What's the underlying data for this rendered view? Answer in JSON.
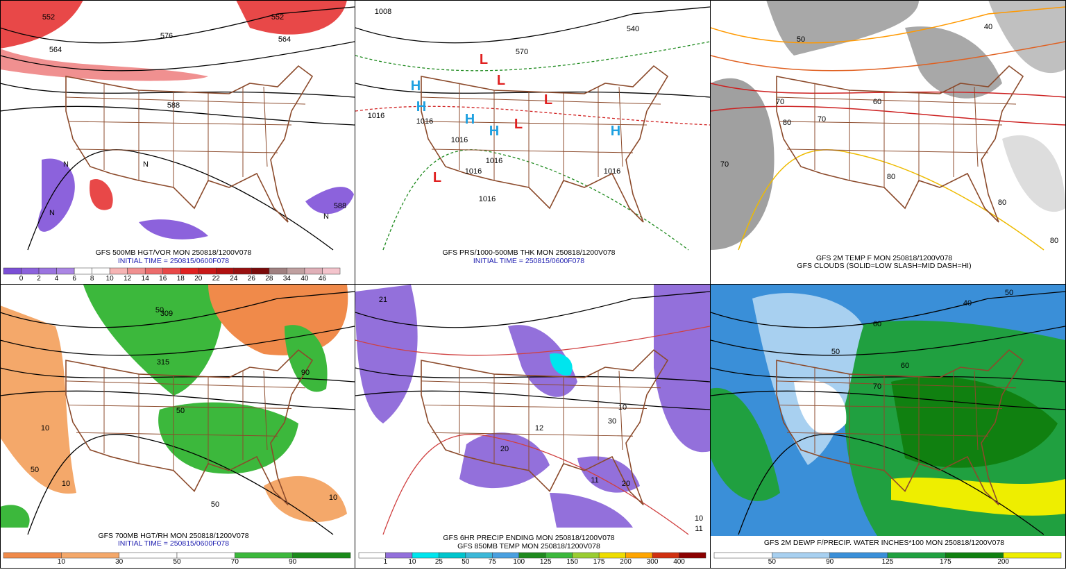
{
  "panels": [
    {
      "caption": [
        "GFS 500MB HGT/VOR MON 250818/1200V078",
        "INITIAL TIME = 250815/0600F078"
      ],
      "map_labels": [
        "552",
        "564",
        "576",
        "588",
        "552",
        "564",
        "588",
        "N",
        "N",
        "N",
        "N"
      ],
      "colorbar": {
        "labels": [
          "0",
          "2",
          "4",
          "6",
          "8",
          "10",
          "12",
          "14",
          "16",
          "18",
          "20",
          "22",
          "24",
          "26",
          "28",
          "34",
          "40",
          "46"
        ],
        "colors": [
          "#7b4fd6",
          "#8c62dc",
          "#9b74e0",
          "#ab86e4",
          "#ffffff",
          "#ffffff",
          "#f6b4b4",
          "#f09090",
          "#ec6c6c",
          "#e84848",
          "#e02020",
          "#c81818",
          "#b01010",
          "#981010",
          "#7a0a0a",
          "#a08080",
          "#c0a0a0",
          "#e0b0b8",
          "#f4c4cc"
        ]
      }
    },
    {
      "caption": [
        "GFS PRS/1000-500MB THK MON 250818/1200V078",
        "INITIAL TIME = 250815/0600F078"
      ],
      "map_labels": [
        "1008",
        "1016",
        "1016",
        "1016",
        "1016",
        "1016",
        "1016",
        "1016",
        "540",
        "570",
        "H",
        "H",
        "H",
        "H",
        "H",
        "L",
        "L",
        "L",
        "L",
        "L"
      ]
    },
    {
      "caption": [
        "GFS 2M TEMP F MON 250818/1200V078",
        "GFS CLOUDS (SOLID=LOW SLASH=MID DASH=HI)"
      ],
      "map_labels": [
        "70",
        "80",
        "70",
        "80",
        "60",
        "50",
        "40",
        "80",
        "80",
        "70"
      ]
    },
    {
      "caption": [
        "GFS 700MB HGT/RH MON 250818/1200V078",
        "INITIAL TIME = 250815/0600F078"
      ],
      "map_labels": [
        "315",
        "50",
        "50",
        "10",
        "10",
        "50",
        "90",
        "50",
        "10",
        "309"
      ],
      "colorbar": {
        "labels": [
          "10",
          "30",
          "50",
          "70",
          "90"
        ],
        "colors": [
          "#f08a4a",
          "#f4a86a",
          "#ffffff",
          "#ffffff",
          "#3cb83c",
          "#1a8a1a"
        ]
      }
    },
    {
      "caption": [
        "GFS 6HR PRECIP ENDING MON 250818/1200V078",
        "GFS 850MB TEMP MON 250818/1200V078"
      ],
      "map_labels": [
        "21",
        "12",
        "11",
        "20",
        "10",
        "11",
        "30",
        "20",
        "10"
      ],
      "colorbar": {
        "labels": [
          "1",
          "10",
          "25",
          "50",
          "75",
          "100",
          "125",
          "150",
          "175",
          "200",
          "300",
          "400"
        ],
        "colors": [
          "#ffffff",
          "#9370db",
          "#00e5ee",
          "#00c5cd",
          "#3cb8d8",
          "#4aa0e0",
          "#1e8a1e",
          "#3cb83c",
          "#9acd32",
          "#eedd00",
          "#ffa500",
          "#d03010",
          "#8b0000"
        ]
      }
    },
    {
      "caption": [
        "GFS 2M DEWP F/PRECIP. WATER INCHES*100 MON 250818/1200V078"
      ],
      "map_labels": [
        "50",
        "60",
        "40",
        "50",
        "60",
        "70"
      ],
      "colorbar": {
        "labels": [
          "50",
          "90",
          "125",
          "175",
          "200"
        ],
        "colors": [
          "#ffffff",
          "#a8d0f0",
          "#3a8fd8",
          "#20a040",
          "#108010",
          "#eeee00"
        ]
      }
    }
  ]
}
